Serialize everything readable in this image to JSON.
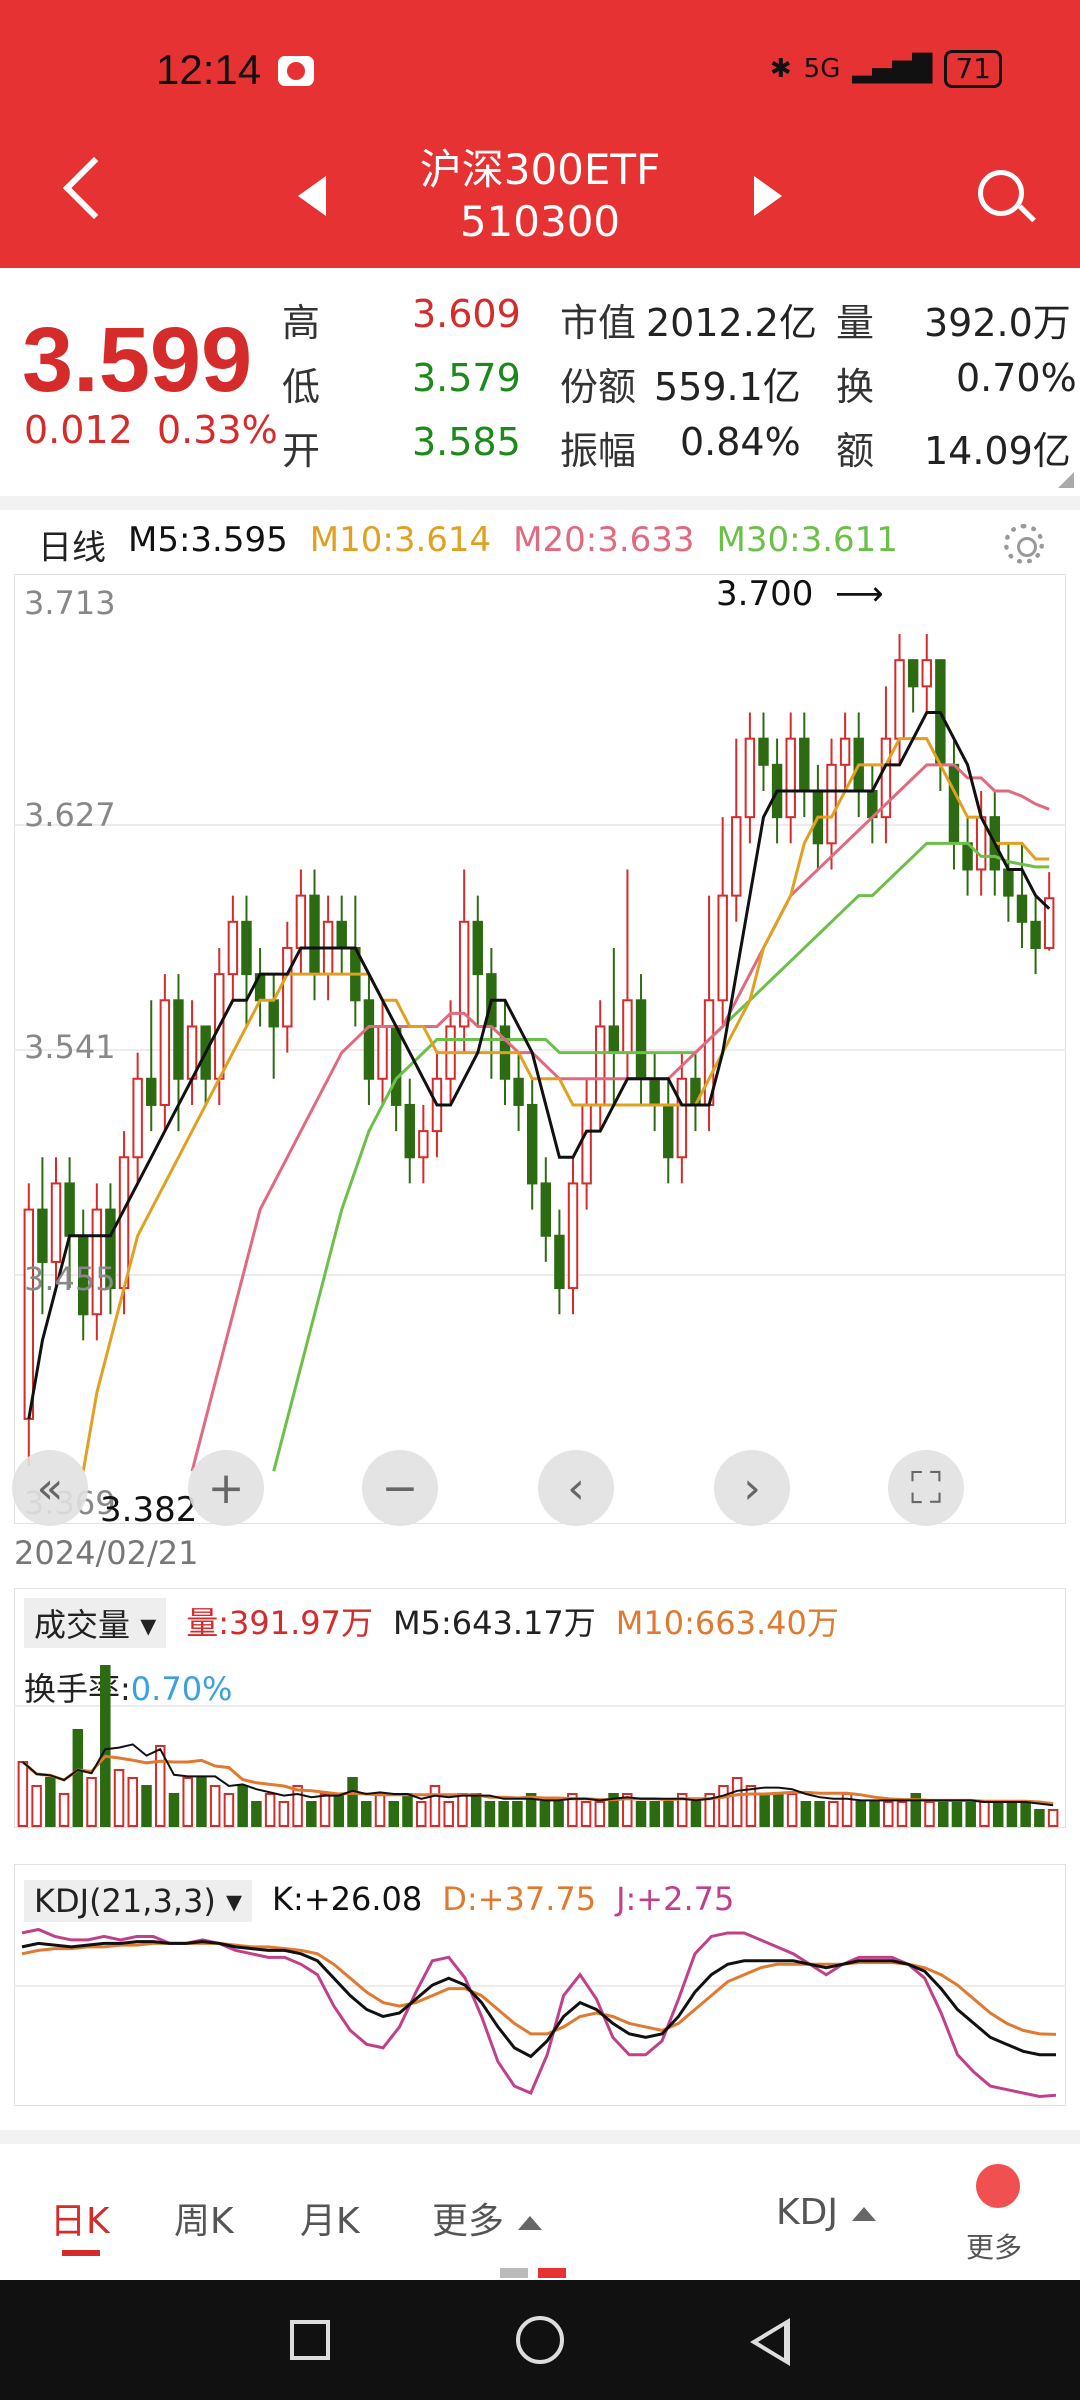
{
  "status_bar": {
    "time": "12:14",
    "network": "5G",
    "battery": "71"
  },
  "header": {
    "title": "沪深300ETF",
    "code": "510300"
  },
  "quote": {
    "price": "3.599",
    "change": "0.012",
    "change_pct": "0.33%",
    "labels": {
      "high": "高",
      "low": "低",
      "open": "开",
      "market_cap": "市值",
      "shares": "份额",
      "amplitude": "振幅",
      "volume": "量",
      "turnover": "换",
      "amount": "额"
    },
    "high": "3.609",
    "low": "3.579",
    "open": "3.585",
    "market_cap": "2012.2亿",
    "shares": "559.1亿",
    "amplitude": "0.84%",
    "volume": "392.0万",
    "turnover": "0.70%",
    "amount": "14.09亿"
  },
  "kline_legend": {
    "period": "日线",
    "m5": "M5:3.595",
    "m10": "M10:3.614",
    "m20": "M20:3.633",
    "m30": "M30:3.611"
  },
  "colors": {
    "up": "#d62b2b",
    "down": "#2d6b12",
    "m5": "#111111",
    "m10": "#e0a020",
    "m20": "#e06a80",
    "m30": "#6cc04a",
    "header": "#e63232"
  },
  "chart_data": [
    {
      "type": "candlestick",
      "y_ticks": [
        "3.713",
        "3.627",
        "3.541",
        "3.455",
        "3.369"
      ],
      "ylim": [
        3.369,
        3.713
      ],
      "annotations": {
        "max": "3.700",
        "min": "3.382"
      },
      "date": "2024/02/21",
      "candles": [
        [
          3.4,
          3.48,
          3.382,
          3.49
        ],
        [
          3.48,
          3.46,
          3.44,
          3.5
        ],
        [
          3.46,
          3.49,
          3.45,
          3.5
        ],
        [
          3.49,
          3.47,
          3.45,
          3.5
        ],
        [
          3.47,
          3.44,
          3.43,
          3.48
        ],
        [
          3.44,
          3.48,
          3.43,
          3.49
        ],
        [
          3.48,
          3.45,
          3.44,
          3.49
        ],
        [
          3.45,
          3.5,
          3.44,
          3.51
        ],
        [
          3.5,
          3.53,
          3.49,
          3.54
        ],
        [
          3.53,
          3.52,
          3.51,
          3.56
        ],
        [
          3.52,
          3.56,
          3.51,
          3.57
        ],
        [
          3.56,
          3.53,
          3.51,
          3.57
        ],
        [
          3.53,
          3.55,
          3.52,
          3.56
        ],
        [
          3.55,
          3.53,
          3.52,
          3.55
        ],
        [
          3.53,
          3.57,
          3.52,
          3.58
        ],
        [
          3.57,
          3.59,
          3.56,
          3.6
        ],
        [
          3.59,
          3.57,
          3.55,
          3.6
        ],
        [
          3.57,
          3.56,
          3.55,
          3.58
        ],
        [
          3.56,
          3.55,
          3.53,
          3.57
        ],
        [
          3.55,
          3.58,
          3.54,
          3.59
        ],
        [
          3.58,
          3.6,
          3.57,
          3.61
        ],
        [
          3.6,
          3.57,
          3.56,
          3.61
        ],
        [
          3.57,
          3.59,
          3.56,
          3.6
        ],
        [
          3.59,
          3.58,
          3.57,
          3.6
        ],
        [
          3.58,
          3.56,
          3.55,
          3.6
        ],
        [
          3.56,
          3.53,
          3.52,
          3.57
        ],
        [
          3.53,
          3.55,
          3.52,
          3.56
        ],
        [
          3.55,
          3.52,
          3.51,
          3.55
        ],
        [
          3.52,
          3.5,
          3.49,
          3.53
        ],
        [
          3.5,
          3.51,
          3.49,
          3.52
        ],
        [
          3.51,
          3.53,
          3.5,
          3.54
        ],
        [
          3.53,
          3.55,
          3.52,
          3.56
        ],
        [
          3.55,
          3.59,
          3.54,
          3.61
        ],
        [
          3.59,
          3.57,
          3.55,
          3.6
        ],
        [
          3.57,
          3.55,
          3.53,
          3.58
        ],
        [
          3.55,
          3.53,
          3.52,
          3.56
        ],
        [
          3.53,
          3.52,
          3.51,
          3.54
        ],
        [
          3.52,
          3.49,
          3.48,
          3.53
        ],
        [
          3.49,
          3.47,
          3.46,
          3.5
        ],
        [
          3.47,
          3.45,
          3.44,
          3.48
        ],
        [
          3.45,
          3.49,
          3.44,
          3.5
        ],
        [
          3.49,
          3.52,
          3.48,
          3.53
        ],
        [
          3.52,
          3.55,
          3.51,
          3.56
        ],
        [
          3.55,
          3.54,
          3.52,
          3.58
        ],
        [
          3.54,
          3.56,
          3.53,
          3.61
        ],
        [
          3.56,
          3.53,
          3.52,
          3.57
        ],
        [
          3.53,
          3.52,
          3.51,
          3.54
        ],
        [
          3.52,
          3.5,
          3.49,
          3.53
        ],
        [
          3.5,
          3.53,
          3.49,
          3.54
        ],
        [
          3.53,
          3.52,
          3.51,
          3.54
        ],
        [
          3.52,
          3.56,
          3.51,
          3.6
        ],
        [
          3.56,
          3.6,
          3.55,
          3.63
        ],
        [
          3.6,
          3.63,
          3.59,
          3.66
        ],
        [
          3.63,
          3.66,
          3.62,
          3.67
        ],
        [
          3.66,
          3.65,
          3.64,
          3.67
        ],
        [
          3.65,
          3.63,
          3.62,
          3.66
        ],
        [
          3.63,
          3.66,
          3.62,
          3.67
        ],
        [
          3.66,
          3.64,
          3.63,
          3.67
        ],
        [
          3.64,
          3.62,
          3.61,
          3.65
        ],
        [
          3.62,
          3.65,
          3.61,
          3.66
        ],
        [
          3.65,
          3.66,
          3.64,
          3.67
        ],
        [
          3.66,
          3.64,
          3.63,
          3.67
        ],
        [
          3.64,
          3.63,
          3.62,
          3.65
        ],
        [
          3.63,
          3.66,
          3.62,
          3.68
        ],
        [
          3.66,
          3.69,
          3.65,
          3.7
        ],
        [
          3.69,
          3.68,
          3.67,
          3.69
        ],
        [
          3.68,
          3.69,
          3.67,
          3.7
        ],
        [
          3.69,
          3.65,
          3.64,
          3.69
        ],
        [
          3.65,
          3.62,
          3.61,
          3.66
        ],
        [
          3.62,
          3.61,
          3.6,
          3.63
        ],
        [
          3.61,
          3.63,
          3.6,
          3.64
        ],
        [
          3.63,
          3.61,
          3.6,
          3.64
        ],
        [
          3.61,
          3.6,
          3.59,
          3.62
        ],
        [
          3.6,
          3.59,
          3.58,
          3.62
        ],
        [
          3.59,
          3.58,
          3.57,
          3.6
        ],
        [
          3.58,
          3.599,
          3.579,
          3.609
        ]
      ],
      "ma5": [
        3.4,
        3.43,
        3.45,
        3.47,
        3.47,
        3.47,
        3.47,
        3.48,
        3.49,
        3.5,
        3.51,
        3.52,
        3.53,
        3.54,
        3.55,
        3.56,
        3.56,
        3.57,
        3.57,
        3.57,
        3.58,
        3.58,
        3.58,
        3.58,
        3.58,
        3.57,
        3.56,
        3.55,
        3.54,
        3.53,
        3.52,
        3.52,
        3.53,
        3.54,
        3.56,
        3.56,
        3.55,
        3.54,
        3.52,
        3.5,
        3.5,
        3.51,
        3.51,
        3.52,
        3.53,
        3.53,
        3.53,
        3.53,
        3.52,
        3.52,
        3.52,
        3.54,
        3.57,
        3.6,
        3.63,
        3.64,
        3.64,
        3.64,
        3.64,
        3.64,
        3.64,
        3.64,
        3.64,
        3.65,
        3.65,
        3.66,
        3.67,
        3.67,
        3.66,
        3.65,
        3.63,
        3.62,
        3.61,
        3.61,
        3.6,
        3.595
      ],
      "ma10": [
        null,
        null,
        null,
        null,
        3.38,
        3.41,
        3.43,
        3.45,
        3.47,
        3.48,
        3.49,
        3.5,
        3.51,
        3.52,
        3.53,
        3.54,
        3.55,
        3.56,
        3.56,
        3.57,
        3.57,
        3.57,
        3.57,
        3.57,
        3.57,
        3.57,
        3.56,
        3.56,
        3.55,
        3.55,
        3.54,
        3.54,
        3.54,
        3.54,
        3.54,
        3.54,
        3.54,
        3.53,
        3.53,
        3.53,
        3.52,
        3.52,
        3.52,
        3.52,
        3.52,
        3.52,
        3.52,
        3.52,
        3.52,
        3.52,
        3.53,
        3.54,
        3.55,
        3.56,
        3.58,
        3.59,
        3.6,
        3.62,
        3.63,
        3.63,
        3.64,
        3.65,
        3.65,
        3.65,
        3.66,
        3.66,
        3.66,
        3.65,
        3.64,
        3.63,
        3.63,
        3.62,
        3.62,
        3.62,
        3.614,
        3.614
      ],
      "ma20": [
        null,
        null,
        null,
        null,
        null,
        null,
        null,
        null,
        null,
        null,
        null,
        null,
        3.38,
        3.4,
        3.42,
        3.44,
        3.46,
        3.48,
        3.49,
        3.5,
        3.51,
        3.52,
        3.53,
        3.54,
        3.545,
        3.55,
        3.55,
        3.55,
        3.55,
        3.55,
        3.55,
        3.555,
        3.555,
        3.55,
        3.55,
        3.545,
        3.54,
        3.54,
        3.535,
        3.53,
        3.53,
        3.53,
        3.53,
        3.53,
        3.53,
        3.53,
        3.53,
        3.53,
        3.535,
        3.54,
        3.545,
        3.55,
        3.56,
        3.57,
        3.58,
        3.59,
        3.6,
        3.605,
        3.61,
        3.615,
        3.62,
        3.625,
        3.63,
        3.635,
        3.64,
        3.645,
        3.65,
        3.65,
        3.65,
        3.645,
        3.645,
        3.64,
        3.64,
        3.638,
        3.635,
        3.633
      ],
      "ma30": [
        null,
        null,
        null,
        null,
        null,
        null,
        null,
        null,
        null,
        null,
        null,
        null,
        null,
        null,
        null,
        null,
        null,
        null,
        3.38,
        3.4,
        3.42,
        3.44,
        3.46,
        3.48,
        3.495,
        3.51,
        3.52,
        3.53,
        3.535,
        3.54,
        3.545,
        3.545,
        3.545,
        3.545,
        3.545,
        3.545,
        3.545,
        3.545,
        3.545,
        3.54,
        3.54,
        3.54,
        3.54,
        3.54,
        3.54,
        3.54,
        3.54,
        3.54,
        3.54,
        3.54,
        3.545,
        3.55,
        3.555,
        3.56,
        3.565,
        3.57,
        3.575,
        3.58,
        3.585,
        3.59,
        3.595,
        3.6,
        3.6,
        3.605,
        3.61,
        3.615,
        3.62,
        3.62,
        3.62,
        3.62,
        3.615,
        3.615,
        3.613,
        3.612,
        3.611,
        3.611
      ]
    },
    {
      "type": "bar",
      "title": "成交量",
      "legend": {
        "vol": "量:391.97万",
        "m5": "M5:643.17万",
        "m10": "M10:663.40万",
        "turnover_label": "换手率:",
        "turnover_value": "0.70%"
      },
      "volumes": [
        8,
        5,
        6,
        4,
        12,
        6,
        20,
        7,
        6,
        5,
        10,
        4,
        6,
        6,
        5,
        4,
        5,
        3,
        4,
        3,
        5,
        3,
        4,
        4,
        6,
        3,
        4,
        3,
        4,
        3,
        5,
        3,
        4,
        4,
        3,
        3,
        3,
        4,
        3,
        3,
        4,
        3,
        3,
        4,
        4,
        3,
        3,
        3,
        4,
        3,
        4,
        5,
        6,
        5,
        4,
        4,
        4,
        3,
        3,
        3,
        4,
        3,
        3,
        3,
        3,
        4,
        3,
        3,
        3,
        3,
        3,
        3,
        3,
        3,
        2,
        2
      ],
      "directions": [
        1,
        1,
        0,
        1,
        0,
        1,
        0,
        1,
        1,
        0,
        1,
        0,
        1,
        0,
        1,
        1,
        0,
        0,
        1,
        1,
        1,
        0,
        1,
        0,
        0,
        0,
        1,
        0,
        0,
        1,
        1,
        1,
        1,
        0,
        0,
        0,
        0,
        0,
        0,
        0,
        1,
        1,
        1,
        0,
        1,
        0,
        0,
        0,
        1,
        0,
        1,
        1,
        1,
        1,
        0,
        0,
        1,
        0,
        0,
        1,
        1,
        0,
        0,
        1,
        1,
        0,
        1,
        0,
        0,
        0,
        1,
        0,
        0,
        0,
        0,
        1
      ],
      "ylim": [
        0,
        22
      ]
    },
    {
      "type": "line",
      "title": "KDJ(21,3,3)",
      "legend": {
        "k": "K:+26.08",
        "d": "D:+37.75",
        "j": "J:+2.75"
      },
      "ylim": [
        0,
        100
      ],
      "k": [
        88,
        90,
        89,
        88,
        89,
        90,
        90,
        91,
        91,
        90,
        90,
        91,
        90,
        88,
        87,
        86,
        86,
        84,
        80,
        70,
        60,
        52,
        48,
        50,
        58,
        66,
        70,
        66,
        56,
        42,
        30,
        25,
        34,
        48,
        56,
        52,
        44,
        38,
        36,
        38,
        48,
        62,
        72,
        78,
        80,
        80,
        80,
        80,
        78,
        76,
        78,
        80,
        80,
        80,
        78,
        74,
        64,
        52,
        44,
        36,
        32,
        28,
        26,
        26
      ],
      "d": [
        84,
        86,
        87,
        87,
        88,
        88,
        89,
        89,
        90,
        90,
        90,
        90,
        90,
        89,
        88,
        88,
        87,
        86,
        84,
        78,
        70,
        62,
        56,
        54,
        56,
        60,
        64,
        64,
        60,
        52,
        44,
        38,
        38,
        42,
        48,
        50,
        48,
        44,
        42,
        40,
        44,
        52,
        60,
        68,
        72,
        76,
        78,
        78,
        78,
        78,
        78,
        79,
        79,
        79,
        78,
        76,
        72,
        66,
        58,
        50,
        44,
        40,
        38,
        37.75
      ],
      "j": [
        96,
        98,
        94,
        92,
        92,
        94,
        92,
        94,
        94,
        90,
        90,
        92,
        90,
        86,
        84,
        82,
        82,
        78,
        72,
        54,
        40,
        32,
        30,
        42,
        62,
        80,
        82,
        70,
        48,
        22,
        8,
        4,
        26,
        60,
        72,
        58,
        36,
        26,
        26,
        34,
        58,
        84,
        94,
        96,
        96,
        92,
        88,
        84,
        78,
        72,
        78,
        82,
        82,
        82,
        78,
        70,
        50,
        26,
        16,
        8,
        6,
        4,
        2,
        2.75
      ]
    }
  ],
  "kline_tools": [
    "«",
    "+",
    "−",
    "‹",
    "›",
    "⛶"
  ],
  "tabs": {
    "day": "日K",
    "week": "周K",
    "month": "月K",
    "more": "更多",
    "indicator": "KDJ",
    "more2": "更多"
  }
}
